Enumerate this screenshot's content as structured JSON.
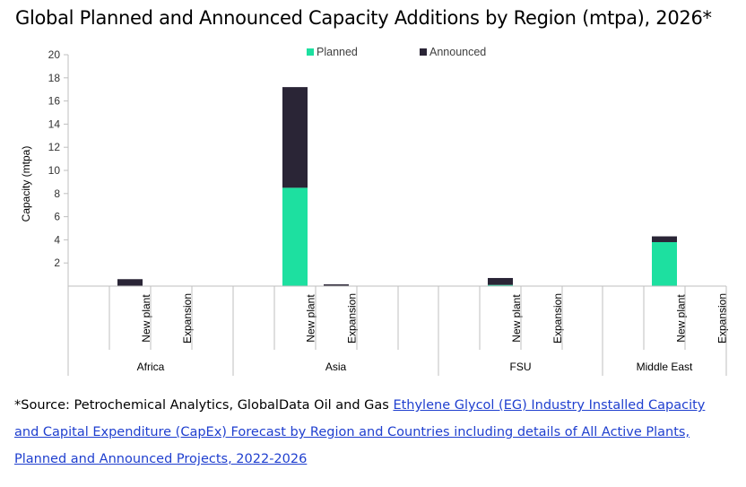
{
  "title": "Global Planned and Announced Capacity Additions by Region (mtpa), 2026*",
  "source": {
    "prefix": "*Source: Petrochemical Analytics, GlobalData Oil and Gas ",
    "link_text": "Ethylene Glycol (EG) Industry Installed Capacity and Capital Expenditure (CapEx) Forecast by Region and Countries including details of All Active Plants, Planned and Announced Projects, 2022-2026"
  },
  "colors": {
    "planned": "#1de0a0",
    "announced": "#2a2536"
  },
  "chart_data": {
    "type": "bar",
    "stacked": true,
    "title": "Global Planned and Announced Capacity Additions by Region (mtpa), 2026*",
    "ylabel": "Capacity (mtpa)",
    "xlabel": "",
    "ylim": [
      0,
      20
    ],
    "yticks": [
      2,
      4,
      6,
      8,
      10,
      12,
      14,
      16,
      18,
      20
    ],
    "legend_position": "top-center",
    "groups": [
      {
        "region": "Africa",
        "categories": [
          "New plant",
          "Expansion"
        ]
      },
      {
        "region": "Asia",
        "categories": [
          "New plant",
          "Expansion"
        ]
      },
      {
        "region": "FSU",
        "categories": [
          "New plant",
          "Expansion"
        ]
      },
      {
        "region": "Middle East",
        "categories": [
          "New plant",
          "Expansion"
        ]
      }
    ],
    "series": [
      {
        "name": "Planned",
        "values": [
          0,
          0,
          8.5,
          0,
          0.1,
          0,
          3.8,
          0
        ]
      },
      {
        "name": "Announced",
        "values": [
          0.6,
          0,
          8.7,
          0.15,
          0.6,
          0,
          0.5,
          0
        ]
      }
    ]
  }
}
